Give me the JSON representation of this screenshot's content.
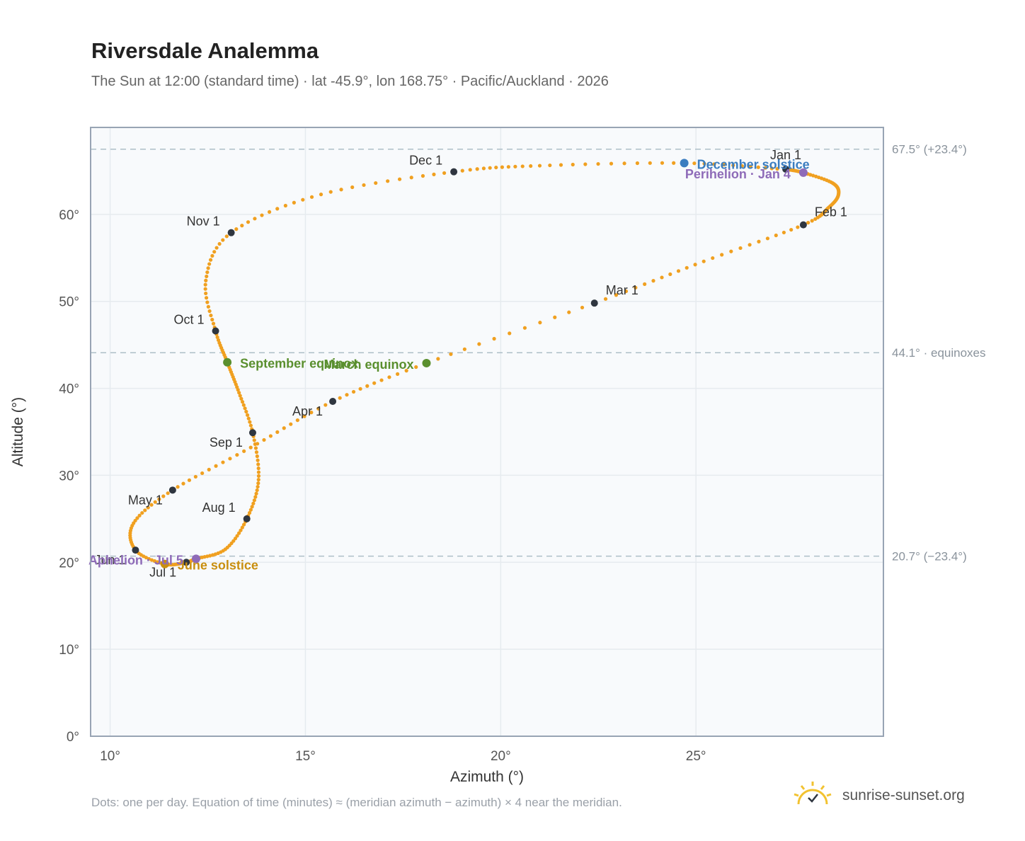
{
  "title": "Riversdale Analemma",
  "subtitle": "The Sun at 12:00 (standard time) · lat -45.9°, lon 168.75° · Pacific/Auckland · 2026",
  "footnote": "Dots: one per day. Equation of time (minutes) ≈ (meridian azimuth − azimuth) × 4 near the meridian.",
  "brand": {
    "name": "sunrise-sunset.org",
    "icon": "sun-logo-icon"
  },
  "colors": {
    "path": "#f0a020",
    "month_dot": "#2f3640",
    "equinox": "#5a8f2e",
    "december_solstice": "#3b7dc0",
    "june_solstice": "#c98f10",
    "perihelion_aphelion": "#8e6bb8",
    "reference_line": "#aebfc8",
    "grid": "#e6ebef",
    "plot_background": "#f8fafc",
    "frame": "#98a4b4"
  },
  "chart_data": {
    "type": "scatter",
    "title": "Riversdale Analemma",
    "xlabel": "Azimuth (°)",
    "ylabel": "Altitude (°)",
    "xlim": [
      9.5,
      29.8
    ],
    "ylim": [
      0,
      70
    ],
    "xticks": [
      10,
      15,
      20,
      25
    ],
    "xtick_labels": [
      "10°",
      "15°",
      "20°",
      "25°"
    ],
    "yticks": [
      0,
      10,
      20,
      30,
      40,
      50,
      60
    ],
    "ytick_labels": [
      "0°",
      "10°",
      "20°",
      "30°",
      "40°",
      "50°",
      "60°"
    ],
    "grid": true,
    "series": [
      {
        "style": "daily dots",
        "points": [
          {
            "date": "Jan 1",
            "azimuth": 27.3,
            "altitude": 65.2
          },
          {
            "date": "Jan 4",
            "azimuth": 27.75,
            "altitude": 64.8
          },
          {
            "date": "Jan 12",
            "azimuth": 28.5,
            "altitude": 63.6
          },
          {
            "date": "Jan 18",
            "azimuth": 28.65,
            "altitude": 62.3
          },
          {
            "date": "Jan 24",
            "azimuth": 28.4,
            "altitude": 60.8
          },
          {
            "date": "Feb 1",
            "azimuth": 27.75,
            "altitude": 58.8
          },
          {
            "date": "Feb 15",
            "azimuth": 25.2,
            "altitude": 54.6
          },
          {
            "date": "Mar 1",
            "azimuth": 22.4,
            "altitude": 49.8
          },
          {
            "date": "Mar 20",
            "azimuth": 18.1,
            "altitude": 42.9
          },
          {
            "date": "Apr 1",
            "azimuth": 15.7,
            "altitude": 38.5
          },
          {
            "date": "Apr 15",
            "azimuth": 13.6,
            "altitude": 33.2
          },
          {
            "date": "May 1",
            "azimuth": 11.6,
            "altitude": 28.3
          },
          {
            "date": "May 15",
            "azimuth": 10.6,
            "altitude": 24.5
          },
          {
            "date": "Jun 1",
            "azimuth": 10.65,
            "altitude": 21.4
          },
          {
            "date": "Jun 21",
            "azimuth": 11.4,
            "altitude": 19.8
          },
          {
            "date": "Jul 1",
            "azimuth": 11.95,
            "altitude": 20.0
          },
          {
            "date": "Jul 5",
            "azimuth": 12.2,
            "altitude": 20.4
          },
          {
            "date": "Jul 15",
            "azimuth": 12.95,
            "altitude": 21.5
          },
          {
            "date": "Aug 1",
            "azimuth": 13.5,
            "altitude": 25.0
          },
          {
            "date": "Aug 15",
            "azimuth": 13.8,
            "altitude": 29.5
          },
          {
            "date": "Sep 1",
            "azimuth": 13.65,
            "altitude": 34.9
          },
          {
            "date": "Sep 12",
            "azimuth": 13.3,
            "altitude": 39.5
          },
          {
            "date": "Sep 23",
            "azimuth": 13.0,
            "altitude": 43.0
          },
          {
            "date": "Oct 1",
            "azimuth": 12.7,
            "altitude": 46.6
          },
          {
            "date": "Oct 15",
            "azimuth": 12.45,
            "altitude": 52.4
          },
          {
            "date": "Nov 1",
            "azimuth": 13.1,
            "altitude": 57.9
          },
          {
            "date": "Nov 15",
            "azimuth": 15.4,
            "altitude": 62.3
          },
          {
            "date": "Dec 1",
            "azimuth": 18.8,
            "altitude": 64.9
          },
          {
            "date": "Dec 10",
            "azimuth": 21.0,
            "altitude": 65.6
          },
          {
            "date": "Dec 21",
            "azimuth": 24.7,
            "altitude": 65.9
          },
          {
            "date": "Dec 31",
            "azimuth": 27.2,
            "altitude": 65.2
          }
        ]
      }
    ],
    "month_markers": [
      {
        "label": "Jan 1",
        "azimuth": 27.3,
        "altitude": 65.2,
        "label_pos": "above"
      },
      {
        "label": "Feb 1",
        "azimuth": 27.75,
        "altitude": 58.8,
        "label_pos": "above-right"
      },
      {
        "label": "Mar 1",
        "azimuth": 22.4,
        "altitude": 49.8,
        "label_pos": "above-right"
      },
      {
        "label": "Apr 1",
        "azimuth": 15.7,
        "altitude": 38.5,
        "label_pos": "below-left"
      },
      {
        "label": "May 1",
        "azimuth": 11.6,
        "altitude": 28.3,
        "label_pos": "below-left"
      },
      {
        "label": "Jun 1",
        "azimuth": 10.65,
        "altitude": 21.4,
        "label_pos": "below-left"
      },
      {
        "label": "Jul 1",
        "azimuth": 11.95,
        "altitude": 20.0,
        "label_pos": "below-left"
      },
      {
        "label": "Aug 1",
        "azimuth": 13.5,
        "altitude": 25.0,
        "label_pos": "above-left"
      },
      {
        "label": "Sep 1",
        "azimuth": 13.65,
        "altitude": 34.9,
        "label_pos": "below-left"
      },
      {
        "label": "Oct 1",
        "azimuth": 12.7,
        "altitude": 46.6,
        "label_pos": "above-left"
      },
      {
        "label": "Nov 1",
        "azimuth": 13.1,
        "altitude": 57.9,
        "label_pos": "above-left"
      },
      {
        "label": "Dec 1",
        "azimuth": 18.8,
        "altitude": 64.9,
        "label_pos": "above-left"
      }
    ],
    "events": [
      {
        "label": "September equinox",
        "azimuth": 13.0,
        "altitude": 43.0,
        "color_key": "equinox",
        "label_pos": "right"
      },
      {
        "label": "March equinox",
        "azimuth": 18.1,
        "altitude": 42.9,
        "color_key": "equinox",
        "label_pos": "left"
      },
      {
        "label": "December solstice",
        "azimuth": 24.7,
        "altitude": 65.9,
        "color_key": "december_solstice",
        "label_pos": "right"
      },
      {
        "label": "June solstice",
        "azimuth": 11.4,
        "altitude": 19.8,
        "color_key": "june_solstice",
        "label_pos": "right"
      },
      {
        "label": "Perihelion · Jan 4",
        "azimuth": 27.75,
        "altitude": 64.8,
        "color_key": "perihelion_aphelion",
        "label_pos": "left"
      },
      {
        "label": "Aphelion · Jul 5",
        "azimuth": 12.2,
        "altitude": 20.4,
        "color_key": "perihelion_aphelion",
        "label_pos": "left"
      }
    ],
    "reference_lines": [
      {
        "altitude": 67.5,
        "label": "67.5° (+23.4°)"
      },
      {
        "altitude": 44.1,
        "label": "44.1° · equinoxes"
      },
      {
        "altitude": 20.7,
        "label": "20.7° (−23.4°)"
      }
    ]
  }
}
